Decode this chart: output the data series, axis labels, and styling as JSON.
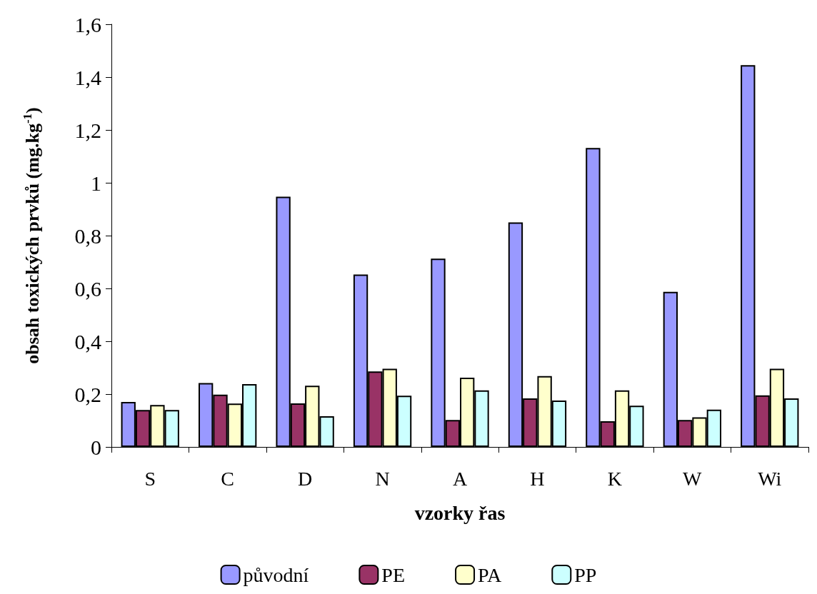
{
  "chart_data": {
    "type": "bar",
    "xlabel": "vzorky řas",
    "ylabel": "obsah toxických prvků (mg.kg$^{-1}$)",
    "categories": [
      "S",
      "C",
      "D",
      "N",
      "A",
      "H",
      "K",
      "W",
      "Wi"
    ],
    "series": [
      {
        "name": "původní",
        "color": "#9999ff",
        "values": [
          0.17,
          0.242,
          0.947,
          0.653,
          0.713,
          0.85,
          1.132,
          0.587,
          1.445
        ]
      },
      {
        "name": "PE",
        "color": "#993366",
        "values": [
          0.14,
          0.198,
          0.165,
          0.286,
          0.102,
          0.184,
          0.097,
          0.102,
          0.195
        ]
      },
      {
        "name": "PA",
        "color": "#ffffcc",
        "values": [
          0.159,
          0.164,
          0.232,
          0.296,
          0.262,
          0.268,
          0.214,
          0.112,
          0.296
        ]
      },
      {
        "name": "PP",
        "color": "#ccffff",
        "values": [
          0.14,
          0.238,
          0.116,
          0.194,
          0.214,
          0.176,
          0.156,
          0.141,
          0.184
        ]
      }
    ],
    "ylim": [
      0,
      1.6
    ],
    "yticks": [
      0,
      {
        "value": 0.2,
        "label": "0,2"
      },
      {
        "value": 0.4,
        "label": "0,4"
      },
      {
        "value": 0.6,
        "label": "0,6"
      },
      {
        "value": 0.8,
        "label": "0,8"
      },
      1,
      {
        "value": 1.2,
        "label": "1,2"
      },
      {
        "value": 1.4,
        "label": "1,4"
      },
      {
        "value": 1.6,
        "label": "1,6"
      }
    ],
    "grid": false,
    "legend": "bottom"
  }
}
